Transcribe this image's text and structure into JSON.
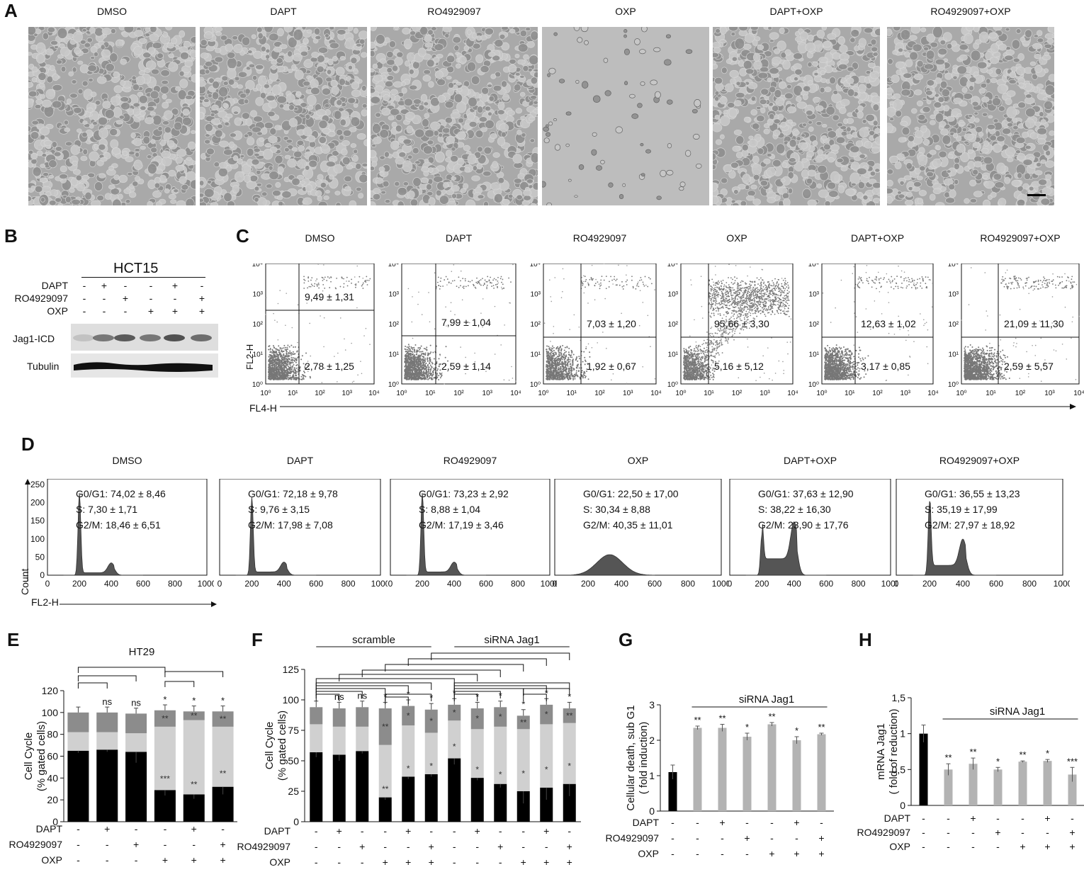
{
  "panel_letters": {
    "A": "A",
    "B": "B",
    "C": "C",
    "D": "D",
    "E": "E",
    "F": "F",
    "G": "G",
    "H": "H"
  },
  "panelA": {
    "conditions": [
      "DMSO",
      "DAPT",
      "RO4929097",
      "OXP",
      "DAPT+OXP",
      "RO4929097+OXP"
    ]
  },
  "panelB": {
    "cell_line": "HCT15",
    "row_labels": [
      "DAPT",
      "RO4929097",
      "OXP"
    ],
    "treatments": [
      [
        "-",
        "+",
        "-",
        "-",
        "+",
        "-"
      ],
      [
        "-",
        "-",
        "+",
        "-",
        "-",
        "+"
      ],
      [
        "-",
        "-",
        "-",
        "+",
        "+",
        "+"
      ]
    ],
    "blot_labels": [
      "Jag1-ICD",
      "Tubulin"
    ]
  },
  "panelC": {
    "conditions": [
      "DMSO",
      "DAPT",
      "RO4929097",
      "OXP",
      "DAPT+OXP",
      "RO4929097+OXP"
    ],
    "upper_values": [
      "9,49 ± 1,31",
      "7,99 ± 1,04",
      "7,03 ± 1,20",
      "95,66 ± 3,30",
      "12,63 ± 1,02",
      "21,09 ± 11,30"
    ],
    "lower_values": [
      "2,78 ± 1,25",
      "2,59 ± 1,14",
      "1,92 ± 0,67",
      "5,16 ± 5,12",
      "3,17 ± 0,85",
      "2,59 ± 5,57"
    ],
    "y_axis": "FL2-H",
    "x_axis": "FL4-H",
    "y_ticks": [
      "10⁰",
      "10¹",
      "10²",
      "10³",
      "10⁴"
    ],
    "x_ticks": [
      "10⁰",
      "10¹",
      "10²",
      "10³",
      "10⁴"
    ]
  },
  "panelD": {
    "conditions": [
      "DMSO",
      "DAPT",
      "RO4929097",
      "OXP",
      "DAPT+OXP",
      "RO4929097+OXP"
    ],
    "g0g1": [
      "G0/G1: 74,02  ± 8,46",
      "G0/G1: 72,18  ± 9,78",
      "G0/G1: 73,23  ± 2,92",
      "G0/G1: 22,50  ± 17,00",
      "G0/G1: 37,63  ± 12,90",
      "G0/G1: 36,55  ± 13,23"
    ],
    "s": [
      "S: 7,30  ± 1,71",
      "S: 9,76  ± 3,15",
      "S: 8,88  ± 1,04",
      "S: 30,34  ± 8,88",
      "S: 38,22  ± 16,30",
      "S: 35,19  ± 17,99"
    ],
    "g2m": [
      "G2/M: 18,46  ± 6,51",
      "G2/M: 17,98  ± 7,08",
      "G2/M: 17,19  ± 3,46",
      "G2/M: 40,35  ± 11,01",
      "G2/M: 23,90  ± 17,76",
      "G2/M: 27,97  ± 18,92"
    ],
    "y_axis": "Count",
    "x_axis": "FL2-H",
    "y_ticks": [
      "0",
      "50",
      "100",
      "150",
      "200",
      "250"
    ],
    "x_ticks": [
      "0",
      "200",
      "400",
      "600",
      "800",
      "1000"
    ]
  },
  "chart_data": [
    {
      "panel": "E",
      "type": "bar",
      "title": "HT29",
      "ylabel": "Cell Cycle\n(% gated cells)",
      "ylim": [
        0,
        120
      ],
      "yticks": [
        0,
        20,
        40,
        60,
        80,
        100,
        120
      ],
      "categories": [
        "1",
        "2",
        "3",
        "4",
        "5",
        "6"
      ],
      "series": [
        {
          "name": "G0/G1",
          "values": [
            65,
            66,
            64,
            29,
            25,
            32
          ],
          "errors": [
            2,
            2,
            10,
            5,
            4,
            7
          ]
        },
        {
          "name": "S",
          "values": [
            17,
            16,
            17,
            58,
            68,
            55
          ]
        },
        {
          "name": "G2/M",
          "values": [
            18,
            18,
            18,
            15,
            8,
            14
          ]
        }
      ],
      "sig_top": [
        "",
        "ns",
        "ns",
        "*",
        "*",
        "*"
      ],
      "sig_mid": [
        "",
        "",
        "",
        "**",
        "**",
        "**"
      ],
      "sig_low": [
        "",
        "",
        "",
        "***",
        "**",
        "**"
      ],
      "treatment_rows": [
        {
          "label": "DAPT",
          "values": [
            "-",
            "+",
            "-",
            "-",
            "+",
            "-"
          ]
        },
        {
          "label": "RO4929097",
          "values": [
            "-",
            "-",
            "+",
            "-",
            "-",
            "+"
          ]
        },
        {
          "label": "OXP",
          "values": [
            "-",
            "-",
            "-",
            "+",
            "+",
            "+"
          ]
        }
      ]
    },
    {
      "panel": "F",
      "type": "bar",
      "ylabel": "Cell Cycle\n(% gated cells)",
      "ylim": [
        0,
        125
      ],
      "yticks": [
        0,
        25,
        50,
        75,
        100,
        125
      ],
      "group_labels": [
        "scramble",
        "siRNA Jag1"
      ],
      "categories": [
        "1",
        "2",
        "3",
        "4",
        "5",
        "6",
        "7",
        "8",
        "9",
        "10",
        "11",
        "12"
      ],
      "series": [
        {
          "name": "G0/G1",
          "values": [
            57,
            55,
            58,
            20,
            37,
            39,
            52,
            36,
            31,
            25,
            28,
            31
          ],
          "errors": [
            4,
            5,
            2,
            2,
            2,
            2,
            5,
            2,
            3,
            10,
            10,
            10
          ]
        },
        {
          "name": "S",
          "values": [
            23,
            23,
            20,
            43,
            42,
            34,
            31,
            40,
            47,
            51,
            52,
            50
          ]
        },
        {
          "name": "G2/M",
          "values": [
            14,
            15,
            16,
            30,
            16,
            19,
            13,
            17,
            16,
            11,
            16,
            12
          ]
        }
      ],
      "sig_top": [
        "",
        "ns",
        "ns",
        "*",
        "*",
        "*",
        "*",
        "*",
        "*",
        "*",
        "*",
        "*"
      ],
      "sig_mid": [
        "",
        "",
        "",
        "**",
        "*",
        "*",
        "*",
        "*",
        "*",
        "**",
        "*",
        "**"
      ],
      "sig_low": [
        "",
        "",
        "",
        "**",
        "*",
        "*",
        "*",
        "*",
        "*",
        "*",
        "*",
        "*"
      ],
      "treatment_rows": [
        {
          "label": "DAPT",
          "values": [
            "-",
            "+",
            "-",
            "-",
            "+",
            "-",
            "-",
            "+",
            "-",
            "-",
            "+",
            "-"
          ]
        },
        {
          "label": "RO4929097",
          "values": [
            "-",
            "-",
            "+",
            "-",
            "-",
            "+",
            "-",
            "-",
            "+",
            "-",
            "-",
            "+"
          ]
        },
        {
          "label": "OXP",
          "values": [
            "-",
            "-",
            "-",
            "+",
            "+",
            "+",
            "-",
            "-",
            "-",
            "+",
            "+",
            "+"
          ]
        }
      ]
    },
    {
      "panel": "G",
      "type": "bar",
      "ylabel": "Cellular death, sub G1\n( fold induction)",
      "ylim": [
        0,
        3
      ],
      "yticks": [
        0,
        1,
        2,
        3
      ],
      "group_label": "siRNA Jag1",
      "categories": [
        "1",
        "2",
        "3",
        "4",
        "5",
        "6",
        "7"
      ],
      "values": [
        1.1,
        2.35,
        2.35,
        2.1,
        2.45,
        2.0,
        2.17
      ],
      "errors": [
        0.2,
        0.05,
        0.1,
        0.1,
        0.05,
        0.1,
        0.03
      ],
      "colors": [
        "#000000",
        "#b3b3b3",
        "#b3b3b3",
        "#b3b3b3",
        "#b3b3b3",
        "#b3b3b3",
        "#b3b3b3"
      ],
      "sig": [
        "",
        "**",
        "**",
        "*",
        "**",
        "*",
        "**"
      ],
      "treatment_rows": [
        {
          "label": "DAPT",
          "values": [
            "-",
            "-",
            "+",
            "-",
            "-",
            "+",
            "-"
          ]
        },
        {
          "label": "RO4929097",
          "values": [
            "-",
            "-",
            "-",
            "+",
            "-",
            "-",
            "+"
          ]
        },
        {
          "label": "OXP",
          "values": [
            "-",
            "-",
            "-",
            "-",
            "+",
            "+",
            "+"
          ]
        }
      ]
    },
    {
      "panel": "H",
      "type": "bar",
      "ylabel": "mRNA Jag1\n( fold of reduction)",
      "ylim": [
        0,
        1.5
      ],
      "yticks": [
        "0",
        "0,5",
        "1",
        "1,5"
      ],
      "group_label": "siRNA Jag1",
      "categories": [
        "1",
        "2",
        "3",
        "4",
        "5",
        "6",
        "7"
      ],
      "values": [
        1.0,
        0.5,
        0.58,
        0.5,
        0.61,
        0.62,
        0.43
      ],
      "errors": [
        0.12,
        0.08,
        0.08,
        0.03,
        0.01,
        0.02,
        0.1
      ],
      "colors": [
        "#000000",
        "#b3b3b3",
        "#b3b3b3",
        "#b3b3b3",
        "#b3b3b3",
        "#b3b3b3",
        "#b3b3b3"
      ],
      "sig": [
        "",
        "**",
        "**",
        "*",
        "**",
        "*",
        "***"
      ],
      "treatment_rows": [
        {
          "label": "DAPT",
          "values": [
            "-",
            "-",
            "+",
            "-",
            "-",
            "+",
            "-"
          ]
        },
        {
          "label": "RO4929097",
          "values": [
            "-",
            "-",
            "-",
            "+",
            "-",
            "-",
            "+"
          ]
        },
        {
          "label": "OXP",
          "values": [
            "-",
            "-",
            "-",
            "-",
            "+",
            "+",
            "+"
          ]
        }
      ]
    }
  ]
}
